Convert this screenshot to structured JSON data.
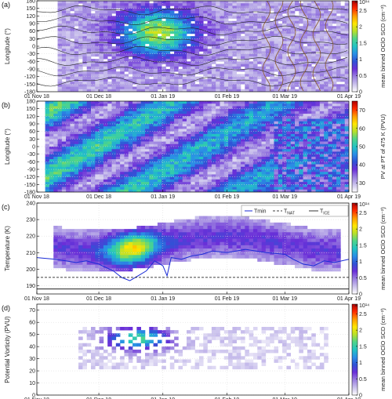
{
  "figure": {
    "x_ticks": [
      "01 Nov 18",
      "01 Dec 18",
      "01 Jan 19",
      "01 Feb 19",
      "01 Mar 19",
      "01 Apr 19"
    ],
    "colorbar_colors": [
      "#ffffff",
      "#c9c0ec",
      "#9a7fe0",
      "#6a2fd8",
      "#2f52d6",
      "#2a8fe6",
      "#22c4c2",
      "#4fd48a",
      "#b8e02a",
      "#ffe600",
      "#ff9a00",
      "#ff2a00",
      "#b00000"
    ]
  },
  "chart_data": [
    {
      "panel": "(a)",
      "type": "heatmap",
      "ylabel": "Longitude (°)",
      "ylim": [
        -180,
        180
      ],
      "yticks": [
        "180",
        "150",
        "120",
        "90",
        "60",
        "30",
        "0",
        "-30",
        "-60",
        "-90",
        "-120",
        "-150",
        "-180"
      ],
      "xlim": [
        "2018-11-01",
        "2019-04-01"
      ],
      "colorbar": {
        "label": "mean binned OClO SCD (cm⁻²)",
        "ticks": [
          "0",
          "0.5",
          "1",
          "1.5",
          "2",
          "2.5"
        ],
        "exponent": "× 10¹⁴",
        "range": [
          0,
          2.8
        ]
      }
    },
    {
      "panel": "(b)",
      "type": "heatmap",
      "ylabel": "Longitude (°)",
      "ylim": [
        -180,
        180
      ],
      "yticks": [
        "180",
        "150",
        "120",
        "90",
        "60",
        "30",
        "0",
        "-30",
        "-60",
        "-90",
        "-120",
        "-150",
        "-180"
      ],
      "xlim": [
        "2018-11-01",
        "2019-04-01"
      ],
      "colorbar": {
        "label": "PV at PT of 475 K (PVU)",
        "ticks": [
          "30",
          "40",
          "50",
          "60",
          "70"
        ],
        "range": [
          25,
          75
        ]
      }
    },
    {
      "panel": "(c)",
      "type": "heatmap",
      "ylabel": "Temperature (K)",
      "ylim": [
        185,
        240
      ],
      "yticks": [
        "240",
        "230",
        "220",
        "210",
        "200",
        "190"
      ],
      "xlim": [
        "2018-11-01",
        "2019-04-01"
      ],
      "legend": [
        "Tmin",
        "T",
        "NAT",
        "T",
        "ICE"
      ],
      "legend_position": "top-right",
      "reference_lines": [
        {
          "name_main": "T",
          "name_sub": "NAT",
          "value": 195,
          "style": "dashed"
        },
        {
          "name_main": "T",
          "name_sub": "ICE",
          "value": 188,
          "style": "solid"
        }
      ],
      "tmin_series": {
        "name": "Tmin",
        "x": [
          "2018-11-01",
          "2018-11-10",
          "2018-11-20",
          "2018-11-25",
          "2018-12-01",
          "2018-12-08",
          "2018-12-12",
          "2018-12-16",
          "2018-12-20",
          "2018-12-24",
          "2018-12-28",
          "2019-01-01",
          "2019-01-03",
          "2019-01-05",
          "2019-01-10",
          "2019-01-15",
          "2019-01-20",
          "2019-01-25",
          "2019-02-01",
          "2019-02-10",
          "2019-02-20",
          "2019-03-01",
          "2019-03-05",
          "2019-03-10",
          "2019-03-15",
          "2019-03-20",
          "2019-03-25",
          "2019-04-01"
        ],
        "y": [
          207,
          206,
          204,
          205,
          203,
          199,
          195,
          193,
          196,
          199,
          205,
          202,
          196,
          207,
          206,
          208,
          209,
          211,
          210,
          212,
          210,
          209,
          206,
          203,
          202,
          205,
          204,
          206
        ]
      },
      "colorbar": {
        "label": "mean binned OClO SCD (cm⁻²)",
        "ticks": [
          "0",
          "0.5",
          "1",
          "1.5",
          "2",
          "2.5"
        ],
        "exponent": "× 10¹⁴",
        "range": [
          0,
          2.8
        ]
      }
    },
    {
      "panel": "(d)",
      "type": "heatmap",
      "ylabel": "Potential Vorticity (PVU)",
      "ylim": [
        0,
        75
      ],
      "yticks": [
        "70",
        "60",
        "50",
        "40",
        "30",
        "20",
        "10",
        "0"
      ],
      "xlim": [
        "2018-11-01",
        "2019-04-01"
      ],
      "colorbar": {
        "label": "mean binned OClO SCD (cm⁻²)",
        "ticks": [
          "0",
          "0.5",
          "1",
          "1.5",
          "2",
          "2.5"
        ],
        "exponent": "× 10¹⁴",
        "range": [
          0,
          2.8
        ]
      }
    }
  ]
}
